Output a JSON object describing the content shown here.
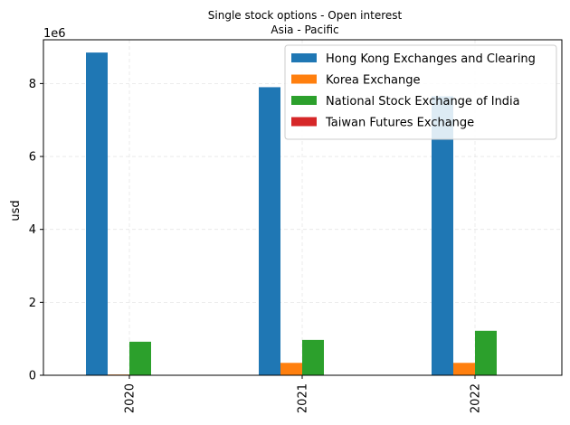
{
  "chart_data": {
    "type": "bar",
    "title": "Single stock options - Open interest",
    "subtitle": "Asia - Pacific",
    "xlabel": "",
    "ylabel": "usd",
    "y_offset_label": "1e6",
    "y_scale_factor": 1000000,
    "ylim": [
      0,
      9200000
    ],
    "yticks": [
      0,
      2000000,
      4000000,
      6000000,
      8000000
    ],
    "ytick_labels": [
      "0",
      "2",
      "4",
      "6",
      "8"
    ],
    "categories": [
      "2020",
      "2021",
      "2022"
    ],
    "series": [
      {
        "name": "Hong Kong Exchanges and Clearing",
        "color": "#1f77b4",
        "values": [
          8850000,
          7900000,
          7650000
        ]
      },
      {
        "name": "Korea Exchange",
        "color": "#ff7f0e",
        "values": [
          20000,
          340000,
          340000
        ]
      },
      {
        "name": "National Stock Exchange of India",
        "color": "#2ca02c",
        "values": [
          920000,
          970000,
          1220000
        ]
      },
      {
        "name": "Taiwan Futures Exchange",
        "color": "#d62728",
        "values": [
          0,
          0,
          0
        ]
      }
    ],
    "grid": true,
    "legend_position": "top-right"
  }
}
